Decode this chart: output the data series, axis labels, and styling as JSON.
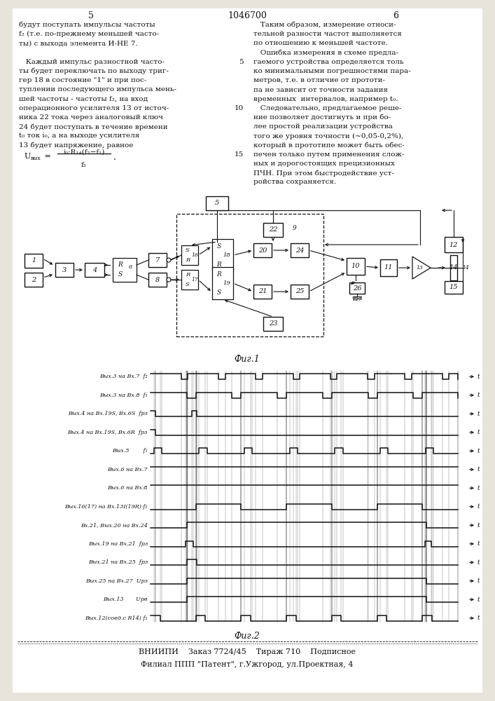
{
  "page_header": "1046700",
  "page_left": "5",
  "page_right": "6",
  "text_left_col": [
    "будут поступать импульсы частоты",
    "f₂ (т.е. по-прежнему меньшей часто-",
    "ты) с выхода элемента И-НЕ 7.",
    "",
    "   Каждый импульс разностной часто-",
    "ты будет переключать по выходу триг-",
    "гер 18 в состояние \"1\" и при пос-",
    "туплении последующего импульса мень-",
    "шей частоты - частоты f₂, на вход",
    "операционного усилителя 13 от источ-",
    "ника 22 тока через аналоговый ключ",
    "24 будет поступать в течение времени",
    "t₀ ток i₀, а на выходе усилителя",
    "13 будет напряжение, равное"
  ],
  "text_right_col": [
    "   Таким образом, измерение относи-",
    "тельной разности частот выполняется",
    "по отношению к меньшей частоте.",
    "   Ошибка измерения в схеме предла-",
    "гаемого устройства определяется толь",
    "ко минимальными погрешностями пара-",
    "метров, т.е. в отличие от прототи-",
    "па не зависит от точности задания",
    "временных  интервалов, например t₀.",
    "   Следовательно, предлагаемое реше-",
    "ние позволяет достигнуть и при бо-",
    "лее простой реализации устройства",
    "того же уровня точности (~0,05-0,2%),",
    "который в прототипе может быть обес-",
    "печен только путем применения слож-",
    "ных и дорогостоящих прецизионных",
    "ПЧН. При этом быстродействие уст-",
    "ройства сохраняется."
  ],
  "timing_labels": [
    "Вых.3 на Вх.7  f₂",
    "Вых.3 на Вх.8  f₁",
    "Вых.4 на Вх.19S, Вх.6S  fрз",
    "Вых.4 на Вх.19S, Вх.6R  fрз",
    "Вых.5        f₁",
    "Вых.6 на Вх.7",
    "Вых.6 на Вх.8",
    "Вых.16(17) на Вх.13I(19R) f₁",
    "Вх.21, Вых.20 на Вх.24",
    "Вых.19 на Вх.21  fрз",
    "Вых.21 на Вх.25  fрз",
    "Вых.25 на Вх.27  Uрз",
    "Вых.13       Uрв",
    "Вых.12(соед.с R14) f₁"
  ],
  "bottom_text1": "ВНИИПИ    Заказ 7724/45    Тираж 710    Подписное",
  "bottom_text2": "Филиал ППП \"Патент\", г.Ужгород, ул.Проектная, 4"
}
